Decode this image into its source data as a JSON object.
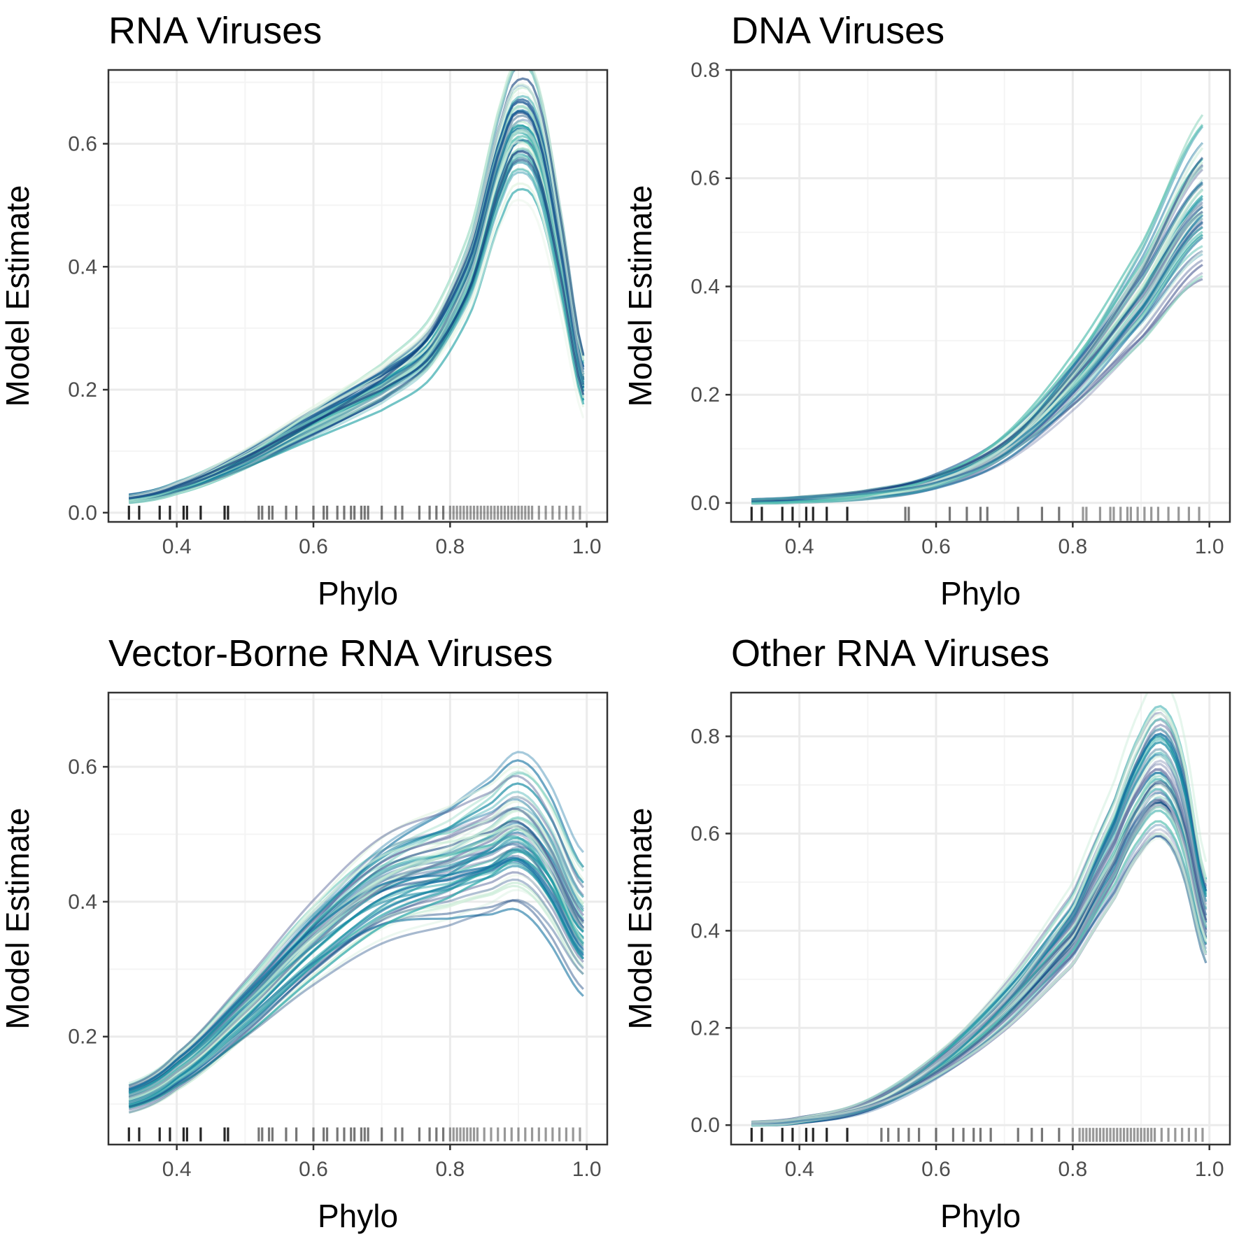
{
  "colors": {
    "grid_major": "#ebebeb",
    "grid_minor": "#f4f4f4",
    "panel_border": "#333333",
    "tick": "#333333",
    "rug": "#1a1a1a",
    "curve_palette": [
      "#0b3c7a",
      "#1a5a95",
      "#0e6e9f",
      "#168aa2",
      "#2aa6a8",
      "#5cc2b4",
      "#97d8c4",
      "#c8ebd6",
      "#e4f4e4",
      "#5e6d9e",
      "#8c93b8"
    ]
  },
  "chart_data": [
    {
      "type": "line",
      "title": "RNA Viruses",
      "xlabel": "Phylo",
      "ylabel": "Model Estimate",
      "xlim": [
        0.3,
        1.03
      ],
      "ylim": [
        -0.015,
        0.72
      ],
      "xticks": [
        0.4,
        0.6,
        0.8,
        1.0
      ],
      "xtick_labels": [
        "0.4",
        "0.6",
        "0.8",
        "1.0"
      ],
      "yticks": [
        0.0,
        0.2,
        0.4,
        0.6
      ],
      "ytick_labels": [
        "0.0",
        "0.2",
        "0.4",
        "0.6"
      ],
      "grid": true,
      "n_curves": 60,
      "x": [
        0.33,
        0.4,
        0.5,
        0.6,
        0.7,
        0.77,
        0.83,
        0.88,
        0.905,
        0.93,
        0.96,
        0.995
      ],
      "y": [
        0.022,
        0.04,
        0.085,
        0.145,
        0.205,
        0.265,
        0.39,
        0.58,
        0.62,
        0.58,
        0.42,
        0.21
      ],
      "rug_y": 0.0,
      "rug_x": [
        0.33,
        0.345,
        0.375,
        0.39,
        0.41,
        0.415,
        0.435,
        0.47,
        0.475,
        0.52,
        0.525,
        0.535,
        0.54,
        0.56,
        0.575,
        0.6,
        0.615,
        0.62,
        0.635,
        0.645,
        0.655,
        0.66,
        0.67,
        0.675,
        0.68,
        0.7,
        0.72,
        0.73,
        0.755,
        0.77,
        0.78,
        0.79,
        0.8,
        0.805,
        0.81,
        0.815,
        0.82,
        0.825,
        0.83,
        0.835,
        0.84,
        0.845,
        0.85,
        0.855,
        0.86,
        0.865,
        0.87,
        0.875,
        0.88,
        0.885,
        0.89,
        0.895,
        0.9,
        0.905,
        0.91,
        0.915,
        0.92,
        0.93,
        0.94,
        0.95,
        0.96,
        0.97,
        0.98,
        0.99
      ]
    },
    {
      "type": "line",
      "title": "DNA Viruses",
      "xlabel": "Phylo",
      "ylabel": "Model Estimate",
      "xlim": [
        0.3,
        1.03
      ],
      "ylim": [
        -0.035,
        0.8
      ],
      "xticks": [
        0.4,
        0.6,
        0.8,
        1.0
      ],
      "xtick_labels": [
        "0.4",
        "0.6",
        "0.8",
        "1.0"
      ],
      "yticks": [
        0.0,
        0.2,
        0.4,
        0.6,
        0.8
      ],
      "ytick_labels": [
        "0.0",
        "0.2",
        "0.4",
        "0.6",
        "0.8"
      ],
      "grid": true,
      "n_curves": 60,
      "x": [
        0.33,
        0.4,
        0.5,
        0.6,
        0.7,
        0.8,
        0.9,
        0.99
      ],
      "y": [
        0.003,
        0.006,
        0.015,
        0.04,
        0.1,
        0.22,
        0.38,
        0.55
      ],
      "rug_y": -0.02,
      "rug_x": [
        0.33,
        0.345,
        0.375,
        0.39,
        0.41,
        0.42,
        0.44,
        0.47,
        0.555,
        0.56,
        0.62,
        0.645,
        0.665,
        0.675,
        0.72,
        0.755,
        0.78,
        0.815,
        0.82,
        0.84,
        0.855,
        0.86,
        0.87,
        0.88,
        0.885,
        0.895,
        0.905,
        0.915,
        0.925,
        0.94,
        0.955,
        0.97,
        0.985
      ]
    },
    {
      "type": "line",
      "title": "Vector-Borne RNA Viruses",
      "xlabel": "Phylo",
      "ylabel": "Model Estimate",
      "xlim": [
        0.3,
        1.03
      ],
      "ylim": [
        0.04,
        0.71
      ],
      "xticks": [
        0.4,
        0.6,
        0.8,
        1.0
      ],
      "xtick_labels": [
        "0.4",
        "0.6",
        "0.8",
        "1.0"
      ],
      "yticks": [
        0.2,
        0.4,
        0.6
      ],
      "ytick_labels": [
        "0.2",
        "0.4",
        "0.6"
      ],
      "grid": true,
      "n_curves": 60,
      "x": [
        0.33,
        0.4,
        0.5,
        0.6,
        0.7,
        0.8,
        0.86,
        0.9,
        0.94,
        0.995
      ],
      "y": [
        0.11,
        0.15,
        0.24,
        0.34,
        0.42,
        0.455,
        0.48,
        0.5,
        0.46,
        0.36
      ],
      "rug_y": 0.055,
      "rug_x": [
        0.33,
        0.345,
        0.375,
        0.39,
        0.41,
        0.415,
        0.435,
        0.47,
        0.475,
        0.52,
        0.525,
        0.535,
        0.54,
        0.56,
        0.575,
        0.6,
        0.615,
        0.62,
        0.635,
        0.645,
        0.655,
        0.66,
        0.67,
        0.675,
        0.68,
        0.7,
        0.72,
        0.73,
        0.755,
        0.77,
        0.78,
        0.79,
        0.8,
        0.805,
        0.81,
        0.815,
        0.82,
        0.825,
        0.83,
        0.835,
        0.84,
        0.85,
        0.86,
        0.87,
        0.88,
        0.89,
        0.9,
        0.91,
        0.92,
        0.93,
        0.94,
        0.95,
        0.96,
        0.97,
        0.98,
        0.99
      ]
    },
    {
      "type": "line",
      "title": "Other RNA Viruses",
      "xlabel": "Phylo",
      "ylabel": "Model Estimate",
      "xlim": [
        0.3,
        1.03
      ],
      "ylim": [
        -0.04,
        0.89
      ],
      "xticks": [
        0.4,
        0.6,
        0.8,
        1.0
      ],
      "xtick_labels": [
        "0.4",
        "0.6",
        "0.8",
        "1.0"
      ],
      "yticks": [
        0.0,
        0.2,
        0.4,
        0.6,
        0.8
      ],
      "ytick_labels": [
        "0.0",
        "0.2",
        "0.4",
        "0.6",
        "0.8"
      ],
      "grid": true,
      "n_curves": 60,
      "x": [
        0.33,
        0.4,
        0.5,
        0.6,
        0.7,
        0.8,
        0.86,
        0.9,
        0.93,
        0.96,
        0.995
      ],
      "y": [
        0.003,
        0.01,
        0.04,
        0.12,
        0.24,
        0.4,
        0.56,
        0.68,
        0.72,
        0.64,
        0.42
      ],
      "rug_y": -0.02,
      "rug_x": [
        0.33,
        0.345,
        0.375,
        0.39,
        0.41,
        0.42,
        0.44,
        0.47,
        0.52,
        0.53,
        0.545,
        0.56,
        0.575,
        0.6,
        0.625,
        0.64,
        0.655,
        0.665,
        0.68,
        0.72,
        0.74,
        0.755,
        0.78,
        0.8,
        0.81,
        0.815,
        0.82,
        0.825,
        0.83,
        0.835,
        0.84,
        0.845,
        0.85,
        0.855,
        0.86,
        0.865,
        0.87,
        0.875,
        0.88,
        0.885,
        0.89,
        0.895,
        0.9,
        0.905,
        0.91,
        0.915,
        0.92,
        0.93,
        0.94,
        0.95,
        0.96,
        0.97,
        0.98,
        0.99
      ]
    }
  ]
}
